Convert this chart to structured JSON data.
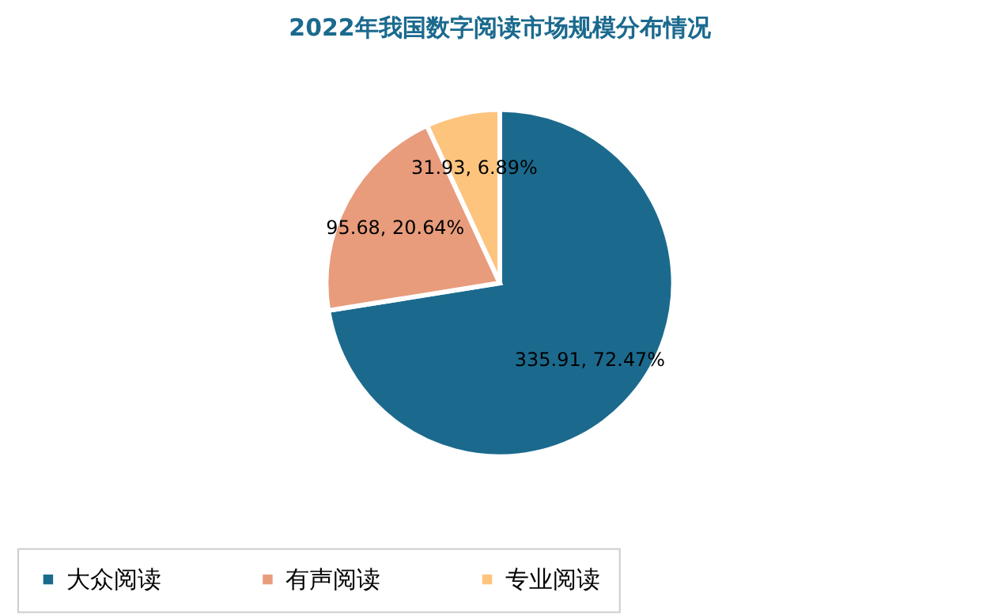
{
  "chart_data": {
    "type": "pie",
    "title": "2022年我国数字阅读市场规模分布情况",
    "categories": [
      "大众阅读",
      "有声阅读",
      "专业阅读"
    ],
    "values": [
      335.91,
      95.68,
      31.93
    ],
    "colors": [
      "#1b6a8e",
      "#e89c7c",
      "#fdc47e"
    ],
    "value_labels": [
      "335.91, 72.47%",
      "95.68, 20.64%",
      "31.93, 6.89%"
    ],
    "legend": "bottom"
  }
}
